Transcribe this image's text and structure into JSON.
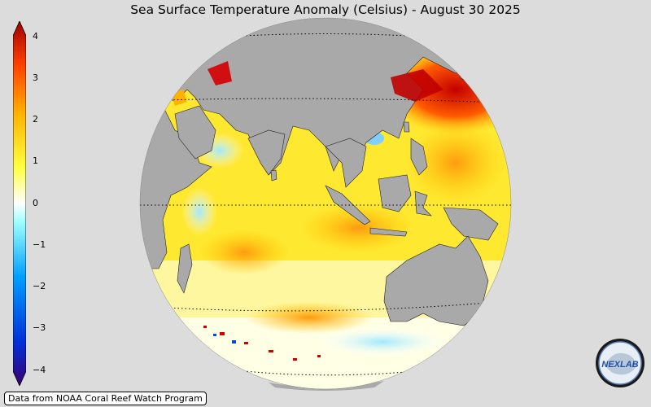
{
  "title": "Sea Surface Temperature Anomaly (Celsius) - August 30 2025",
  "colorbar": {
    "ticks": [
      "4",
      "3",
      "2",
      "1",
      "0",
      "−1",
      "−2",
      "−3",
      "−4"
    ],
    "colors": [
      "#3a0070",
      "#0030d8",
      "#00a0ff",
      "#a0ffff",
      "#ffffff",
      "#ffff40",
      "#ffb000",
      "#ff4000",
      "#a00000"
    ]
  },
  "footer": "Data from NOAA Coral Reef Watch Program",
  "logo": {
    "text": "NEXLAB",
    "icon": "nexlab-logo-icon"
  },
  "colors": {
    "background": "#dcdcdc",
    "land": "#a9a9a9",
    "ocean_warm": "#ffe600",
    "ocean_hot": "#cc0000"
  }
}
